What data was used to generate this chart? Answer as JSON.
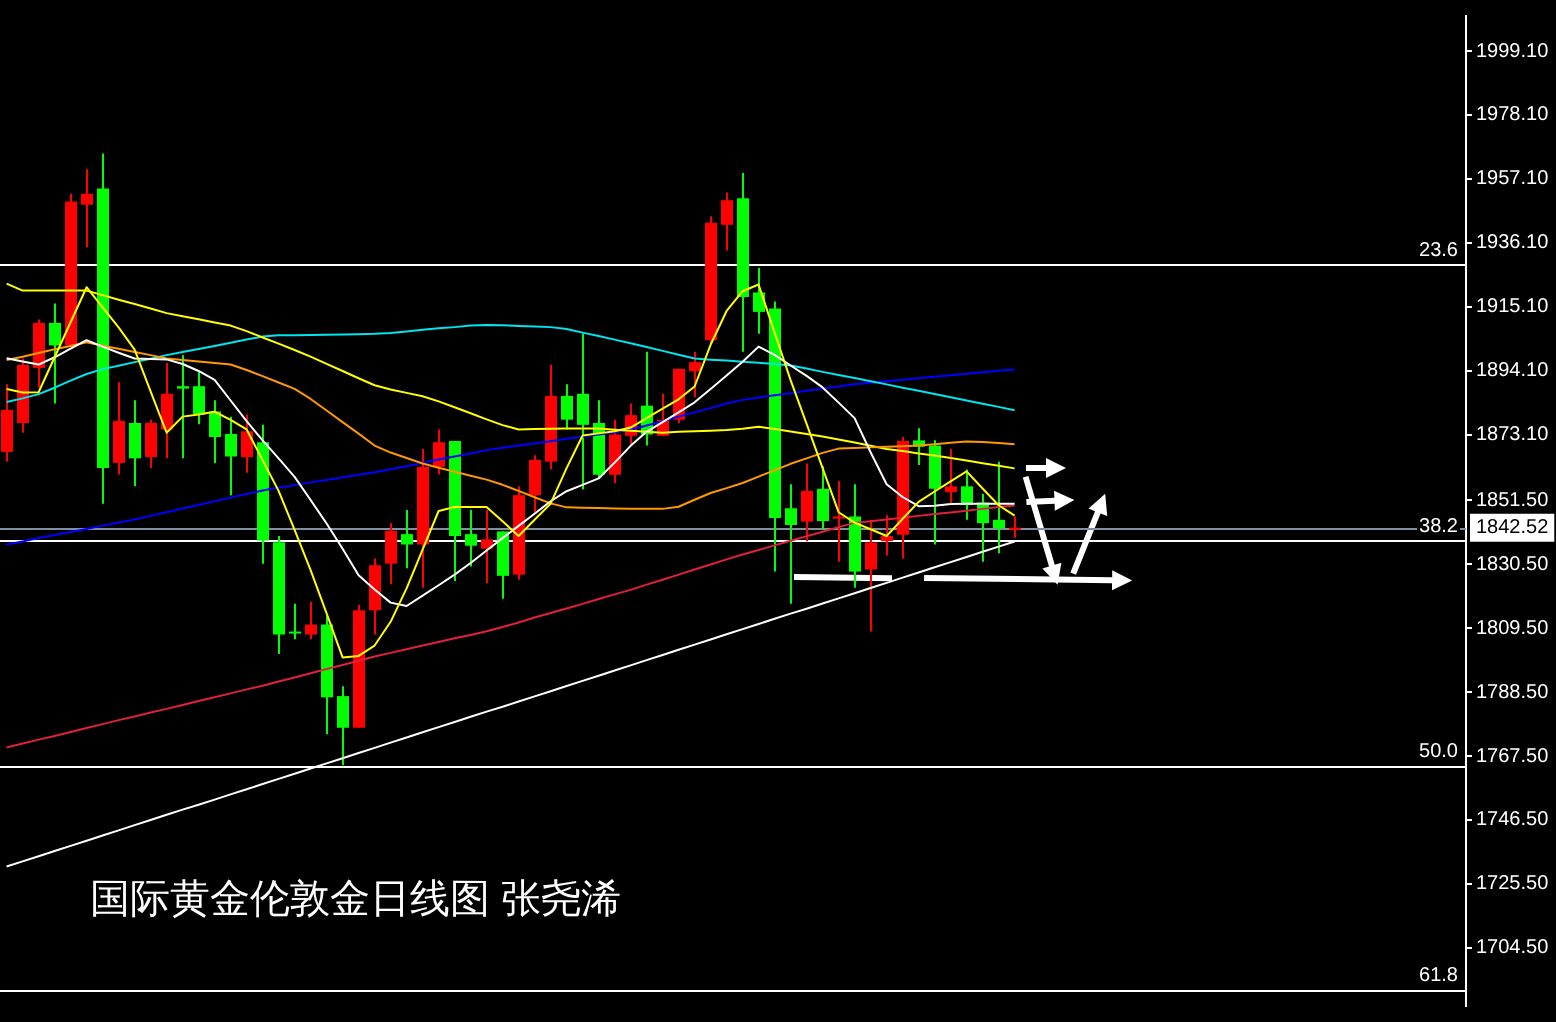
{
  "chart_data": {
    "type": "candlestick",
    "title": "国际黄金伦敦金日线图 张尧浠",
    "categories": [
      null,
      null,
      null,
      null,
      null,
      null,
      null,
      null,
      null,
      null,
      null,
      null,
      null,
      null,
      null,
      null,
      null,
      null,
      null,
      null,
      null,
      null,
      null,
      null,
      null,
      null,
      null,
      null,
      null,
      null,
      null,
      null,
      null,
      null,
      null,
      null,
      null,
      null,
      null,
      null,
      null,
      null,
      null,
      null,
      null,
      null,
      null,
      null,
      null,
      null,
      null,
      null,
      null,
      null,
      null,
      null,
      null,
      null,
      null,
      null,
      null,
      null,
      null,
      null
    ],
    "ohlc": [
      [
        1867.4,
        1889.6,
        1864.2,
        1881.2
      ],
      [
        1876.9,
        1898.1,
        1873.7,
        1896.0
      ],
      [
        1895.0,
        1910.9,
        1888.6,
        1909.8
      ],
      [
        1909.8,
        1916.2,
        1883.3,
        1902.4
      ],
      [
        1902.4,
        1952.2,
        1902.4,
        1949.7
      ],
      [
        1948.6,
        1960.3,
        1934.6,
        1952.2
      ],
      [
        1953.9,
        1965.4,
        1850.4,
        1862.1
      ],
      [
        1863.8,
        1890.3,
        1860.0,
        1877.6
      ],
      [
        1876.9,
        1884.4,
        1856.1,
        1865.3
      ],
      [
        1865.7,
        1878.0,
        1862.1,
        1876.9
      ],
      [
        1874.8,
        1896.6,
        1865.3,
        1886.5
      ],
      [
        1889.0,
        1899.2,
        1865.3,
        1888.2
      ],
      [
        1889.0,
        1893.9,
        1876.5,
        1879.7
      ],
      [
        1880.7,
        1884.4,
        1863.8,
        1872.3
      ],
      [
        1873.3,
        1879.0,
        1853.2,
        1865.9
      ],
      [
        1865.7,
        1879.7,
        1860.6,
        1874.2
      ],
      [
        1870.6,
        1876.3,
        1830.7,
        1838.3
      ],
      [
        1837.7,
        1839.8,
        1801.0,
        1807.4
      ],
      [
        1808.4,
        1817.5,
        1805.9,
        1807.8
      ],
      [
        1807.4,
        1818.2,
        1805.9,
        1810.7
      ],
      [
        1810.7,
        1813.7,
        1774.7,
        1786.8
      ],
      [
        1787.2,
        1790.4,
        1764.5,
        1776.8
      ],
      [
        1776.8,
        1817.1,
        1776.8,
        1815.4
      ],
      [
        1815.4,
        1832.4,
        1807.4,
        1830.2
      ],
      [
        1830.7,
        1844.0,
        1823.9,
        1841.5
      ],
      [
        1840.4,
        1848.3,
        1829.2,
        1837.0
      ],
      [
        1837.0,
        1868.4,
        1822.8,
        1862.5
      ],
      [
        1862.5,
        1874.8,
        1860.0,
        1870.6
      ],
      [
        1871.0,
        1871.0,
        1825.0,
        1839.8
      ],
      [
        1840.4,
        1848.3,
        1829.8,
        1836.6
      ],
      [
        1835.6,
        1848.3,
        1824.3,
        1838.7
      ],
      [
        1841.3,
        1841.3,
        1819.2,
        1826.7
      ],
      [
        1827.1,
        1856.1,
        1825.4,
        1853.2
      ],
      [
        1853.2,
        1866.3,
        1847.2,
        1864.8
      ],
      [
        1864.2,
        1896.0,
        1861.6,
        1885.8
      ],
      [
        1885.8,
        1889.6,
        1874.8,
        1878.0
      ],
      [
        1886.5,
        1906.2,
        1855.1,
        1876.3
      ],
      [
        1876.9,
        1884.4,
        1858.5,
        1859.9
      ],
      [
        1859.9,
        1878.0,
        1857.2,
        1873.1
      ],
      [
        1872.7,
        1883.3,
        1869.5,
        1879.5
      ],
      [
        1882.6,
        1900.3,
        1869.5,
        1873.1
      ],
      [
        1872.7,
        1886.5,
        1872.7,
        1878.0
      ],
      [
        1878.0,
        1894.7,
        1876.9,
        1894.7
      ],
      [
        1893.9,
        1900.3,
        1885.4,
        1896.9
      ],
      [
        1904.1,
        1944.8,
        1903.0,
        1942.7
      ],
      [
        1942.0,
        1952.6,
        1933.6,
        1950.1
      ],
      [
        1950.7,
        1959.0,
        1900.3,
        1918.3
      ],
      [
        1919.8,
        1927.8,
        1906.2,
        1913.4
      ],
      [
        1914.5,
        1916.8,
        1828.1,
        1845.7
      ],
      [
        1848.9,
        1856.8,
        1817.5,
        1843.4
      ],
      [
        1844.5,
        1863.6,
        1838.1,
        1854.6
      ],
      [
        1855.3,
        1862.7,
        1841.9,
        1844.7
      ],
      [
        1845.5,
        1857.8,
        1831.3,
        1846.2
      ],
      [
        1846.2,
        1856.8,
        1822.8,
        1828.1
      ],
      [
        1828.8,
        1845.1,
        1808.4,
        1837.7
      ],
      [
        1838.1,
        1846.6,
        1833.4,
        1839.8
      ],
      [
        1840.2,
        1872.3,
        1832.4,
        1871.0
      ],
      [
        1871.2,
        1875.2,
        1863.1,
        1869.1
      ],
      [
        1869.5,
        1871.2,
        1837.0,
        1855.3
      ],
      [
        1854.2,
        1868.4,
        1850.0,
        1856.1
      ],
      [
        1856.1,
        1861.6,
        1845.1,
        1850.0
      ],
      [
        1850.8,
        1853.6,
        1831.3,
        1844.0
      ],
      [
        1845.1,
        1864.2,
        1834.1,
        1842.3
      ],
      [
        1841.8,
        1846.2,
        1839.2,
        1842.52
      ]
    ],
    "colors": [
      "#ff0000",
      "#ff0000",
      "#ff0000",
      "#00ff00",
      "#ff0000",
      "#ff0000",
      "#00ff00",
      "#ff0000",
      "#00ff00",
      "#ff0000",
      "#ff0000",
      "#00ff00",
      "#00ff00",
      "#00ff00",
      "#00ff00",
      "#ff0000",
      "#00ff00",
      "#00ff00",
      "#00ff00",
      "#ff0000",
      "#00ff00",
      "#00ff00",
      "#ff0000",
      "#ff0000",
      "#ff0000",
      "#00ff00",
      "#ff0000",
      "#ff0000",
      "#00ff00",
      "#00ff00",
      "#ff0000",
      "#00ff00",
      "#ff0000",
      "#ff0000",
      "#ff0000",
      "#00ff00",
      "#00ff00",
      "#00ff00",
      "#ff0000",
      "#ff0000",
      "#00ff00",
      "#ff0000",
      "#ff0000",
      "#ff0000",
      "#ff0000",
      "#ff0000",
      "#00ff00",
      "#00ff00",
      "#00ff00",
      "#00ff00",
      "#ff0000",
      "#00ff00",
      "#ff0000",
      "#00ff00",
      "#ff0000",
      "#ff0000",
      "#ff0000",
      "#00ff00",
      "#00ff00",
      "#ff0000",
      "#00ff00",
      "#00ff00",
      "#00ff00",
      "#ff0000"
    ],
    "series": [
      {
        "type": "line",
        "color": "#ffff00",
        "values": [
          1888.1,
          1886.9,
          1887.0,
          1898.5,
          1910.0,
          1921.5,
          1914.9,
          1908.3,
          1901.0,
          1887.3,
          1873.7,
          1879.0,
          1879.7,
          1880.6,
          1877.9,
          1874.8,
          1864.7,
          1854.6,
          1841.8,
          1828.6,
          1814.4,
          1799.9,
          1800.4,
          1803.8,
          1811.6,
          1822.6,
          1835.3,
          1848.0,
          1849.3,
          1849.3,
          1849.3,
          1844.6,
          1839.8,
          1845.1,
          1850.4,
          1862.1,
          1872.8,
          1873.5,
          1874.2,
          1875.4,
          1878.5,
          1881.6,
          1884.7,
          1888.9,
          1902.6,
          1913.7,
          1920.2,
          1922.4,
          1906.6,
          1891.0,
          1876.6,
          1862.1,
          1847.6,
          1844.2,
          1842.0,
          1839.8,
          1845.4,
          1851.0,
          1854.4,
          1857.7,
          1861.0,
          1855.4,
          1849.9,
          1846.5
        ]
      },
      {
        "type": "line",
        "color": "#ffffff",
        "values": [
          1898.2,
          1897.1,
          1896.1,
          1898.5,
          1901.3,
          1904.1,
          1902.0,
          1900.0,
          1898.1,
          1897.9,
          1897.8,
          1896.3,
          1894.0,
          1891.1,
          1884.3,
          1877.5,
          1871.2,
          1865.3,
          1859.2,
          1851.6,
          1843.9,
          1835.6,
          1826.9,
          1822.2,
          1817.9,
          1816.8,
          1820.2,
          1823.6,
          1827.1,
          1830.9,
          1835.0,
          1839.1,
          1843.1,
          1847.1,
          1851.2,
          1854.5,
          1856.6,
          1858.7,
          1863.9,
          1869.4,
          1874.0,
          1877.2,
          1880.4,
          1883.7,
          1888.1,
          1892.5,
          1897.0,
          1902.0,
          1899.3,
          1895.8,
          1892.4,
          1888.6,
          1883.6,
          1878.5,
          1867.3,
          1856.8,
          1852.6,
          1849.6,
          1849.7,
          1850.3,
          1850.4,
          1850.4,
          1850.4,
          1850.4
        ]
      },
      {
        "type": "line",
        "color": "#ff9900",
        "values": [
          1897.6,
          1898.7,
          1899.9,
          1901.1,
          1902.2,
          1903.4,
          1902.3,
          1901.3,
          1900.2,
          1899.2,
          1898.1,
          1897.6,
          1897.1,
          1896.6,
          1896.1,
          1894.3,
          1892.3,
          1890.2,
          1888.1,
          1884.8,
          1881.0,
          1877.2,
          1873.4,
          1869.5,
          1867.2,
          1865.4,
          1863.6,
          1862.2,
          1860.9,
          1859.6,
          1858.3,
          1856.6,
          1854.6,
          1852.5,
          1850.5,
          1849.2,
          1849.1,
          1849.0,
          1848.8,
          1848.7,
          1848.7,
          1848.7,
          1849.4,
          1851.7,
          1853.9,
          1855.5,
          1857.2,
          1859.3,
          1861.4,
          1863.5,
          1865.3,
          1867.1,
          1868.5,
          1868.7,
          1868.9,
          1869.1,
          1869.3,
          1869.5,
          1869.9,
          1870.4,
          1870.8,
          1870.7,
          1870.3,
          1869.9
        ]
      },
      {
        "type": "line",
        "color": "#ffff00",
        "values": [
          1922.7,
          1920.4,
          1920.4,
          1920.4,
          1920.4,
          1920.4,
          1918.9,
          1917.4,
          1916.0,
          1914.5,
          1913.0,
          1912.0,
          1911.0,
          1909.9,
          1908.9,
          1907.1,
          1905.0,
          1903.0,
          1900.9,
          1898.7,
          1896.3,
          1894.0,
          1891.6,
          1889.3,
          1887.9,
          1886.8,
          1885.7,
          1884.0,
          1882.1,
          1880.1,
          1878.1,
          1876.2,
          1874.8,
          1874.9,
          1875.0,
          1875.1,
          1875.1,
          1875.1,
          1874.7,
          1874.4,
          1874.0,
          1873.7,
          1874.0,
          1874.2,
          1874.4,
          1874.6,
          1875.0,
          1875.7,
          1874.9,
          1874.1,
          1873.3,
          1872.5,
          1871.5,
          1870.5,
          1869.4,
          1868.4,
          1867.7,
          1866.9,
          1866.2,
          1865.4,
          1864.6,
          1863.7,
          1862.9,
          1862.0
        ]
      },
      {
        "type": "line",
        "color": "#00e5ee",
        "values": [
          1883.8,
          1885.0,
          1886.4,
          1888.5,
          1890.8,
          1893.0,
          1894.6,
          1895.7,
          1896.9,
          1898.0,
          1899.2,
          1900.2,
          1901.2,
          1902.2,
          1903.3,
          1904.3,
          1905.3,
          1905.7,
          1905.7,
          1905.8,
          1905.9,
          1906.0,
          1906.1,
          1906.2,
          1906.5,
          1907.0,
          1907.5,
          1908.0,
          1908.4,
          1908.9,
          1909.1,
          1909.0,
          1908.8,
          1908.6,
          1908.4,
          1907.8,
          1906.6,
          1905.5,
          1904.3,
          1903.1,
          1901.9,
          1900.6,
          1899.3,
          1898.1,
          1897.7,
          1897.4,
          1897.0,
          1896.7,
          1896.3,
          1895.8,
          1894.8,
          1893.7,
          1892.7,
          1891.7,
          1890.6,
          1889.6,
          1888.5,
          1887.5,
          1886.4,
          1885.4,
          1884.3,
          1883.2,
          1882.2,
          1881.1
        ]
      },
      {
        "type": "line",
        "color": "#0000ff",
        "values": [
          1837.0,
          1838.0,
          1839.1,
          1840.1,
          1841.1,
          1842.1,
          1843.2,
          1844.2,
          1845.2,
          1846.4,
          1847.6,
          1848.8,
          1850.0,
          1851.2,
          1852.4,
          1853.6,
          1854.7,
          1855.7,
          1856.5,
          1857.4,
          1858.2,
          1859.1,
          1859.9,
          1860.7,
          1861.7,
          1862.7,
          1863.8,
          1864.9,
          1865.9,
          1866.9,
          1868.0,
          1868.8,
          1869.5,
          1870.2,
          1870.9,
          1871.7,
          1872.4,
          1873.1,
          1873.8,
          1874.7,
          1876.1,
          1877.5,
          1879.0,
          1880.4,
          1881.8,
          1883.3,
          1884.5,
          1885.3,
          1886.0,
          1886.7,
          1887.5,
          1888.2,
          1888.9,
          1889.6,
          1890.1,
          1890.6,
          1891.1,
          1891.6,
          1892.1,
          1892.6,
          1893.1,
          1893.6,
          1894.1,
          1894.5
        ]
      },
      {
        "type": "line",
        "color": "#e0203c",
        "values": [
          1770.3,
          1771.6,
          1772.9,
          1774.1,
          1775.4,
          1776.7,
          1778.0,
          1779.3,
          1780.5,
          1781.8,
          1783.0,
          1784.3,
          1785.6,
          1786.8,
          1788.1,
          1789.4,
          1790.6,
          1792.0,
          1793.3,
          1794.7,
          1796.1,
          1797.4,
          1798.8,
          1800.2,
          1801.4,
          1802.6,
          1803.8,
          1805.0,
          1806.2,
          1807.3,
          1808.5,
          1809.9,
          1811.4,
          1813.0,
          1814.5,
          1816.0,
          1817.5,
          1819.1,
          1820.6,
          1822.1,
          1823.8,
          1825.4,
          1827.1,
          1828.8,
          1830.4,
          1832.1,
          1833.7,
          1835.2,
          1836.7,
          1838.2,
          1839.7,
          1841.2,
          1842.7,
          1844.1,
          1844.6,
          1845.2,
          1845.8,
          1846.4,
          1847.0,
          1847.5,
          1848.1,
          1848.7,
          1849.3,
          1849.8
        ]
      },
      {
        "type": "line",
        "color": "#ffffff",
        "values": [
          1731.2,
          1732.9,
          1734.6,
          1736.3,
          1738.0,
          1739.7,
          1741.4,
          1743.1,
          1744.8,
          1746.5,
          1748.2,
          1749.9,
          1751.5,
          1753.2,
          1754.9,
          1756.6,
          1758.3,
          1760.0,
          1761.7,
          1763.4,
          1765.1,
          1766.8,
          1768.5,
          1770.2,
          1771.9,
          1773.6,
          1775.3,
          1777.0,
          1778.7,
          1780.4,
          1782.1,
          1783.7,
          1785.4,
          1787.1,
          1788.8,
          1790.5,
          1792.2,
          1793.9,
          1795.6,
          1797.3,
          1799.0,
          1800.7,
          1802.4,
          1804.1,
          1805.8,
          1807.5,
          1809.2,
          1810.9,
          1812.6,
          1814.3,
          1815.9,
          1817.6,
          1819.3,
          1821.0,
          1822.7,
          1824.4,
          1826.1,
          1827.8,
          1829.5,
          1831.2,
          1832.9,
          1834.6,
          1836.3,
          1838.0
        ]
      }
    ],
    "ylim": [
      1685.4,
      2010.6
    ],
    "yticks": [
      {
        "value": 1999.1,
        "label": "1999.10"
      },
      {
        "value": 1978.1,
        "label": "1978.10"
      },
      {
        "value": 1957.1,
        "label": "1957.10"
      },
      {
        "value": 1936.1,
        "label": "1936.10"
      },
      {
        "value": 1915.1,
        "label": "1915.10"
      },
      {
        "value": 1894.1,
        "label": "1894.10"
      },
      {
        "value": 1873.1,
        "label": "1873.10"
      },
      {
        "value": 1851.5,
        "label": "1851.50"
      },
      {
        "value": 1830.5,
        "label": "1830.50"
      },
      {
        "value": 1809.5,
        "label": "1809.50"
      },
      {
        "value": 1788.5,
        "label": "1788.50"
      },
      {
        "value": 1767.5,
        "label": "1767.50"
      },
      {
        "value": 1746.5,
        "label": "1746.50"
      },
      {
        "value": 1725.5,
        "label": "1725.50"
      },
      {
        "value": 1704.5,
        "label": "1704.50"
      }
    ],
    "tick_labels": "y",
    "grid": false,
    "ref_lines": [
      {
        "axis": "y",
        "value": 1929.1,
        "color": "#ffffff"
      },
      {
        "axis": "y",
        "value": 1838.2,
        "color": "#ffffff"
      },
      {
        "axis": "y",
        "value": 1764.3,
        "color": "#ffffff"
      },
      {
        "axis": "y",
        "value": 1690.7,
        "color": "#ffffff"
      },
      {
        "axis": "y",
        "value": 1842.52,
        "label": "1842.52",
        "color": "#8090a0"
      }
    ],
    "annotations": [
      {
        "text": "23.6",
        "y": 1929.1
      },
      {
        "text": "38.2",
        "y": 1838.2
      },
      {
        "text": "50.0",
        "y": 1764.3
      },
      {
        "text": "61.8",
        "y": 1690.7
      }
    ]
  }
}
